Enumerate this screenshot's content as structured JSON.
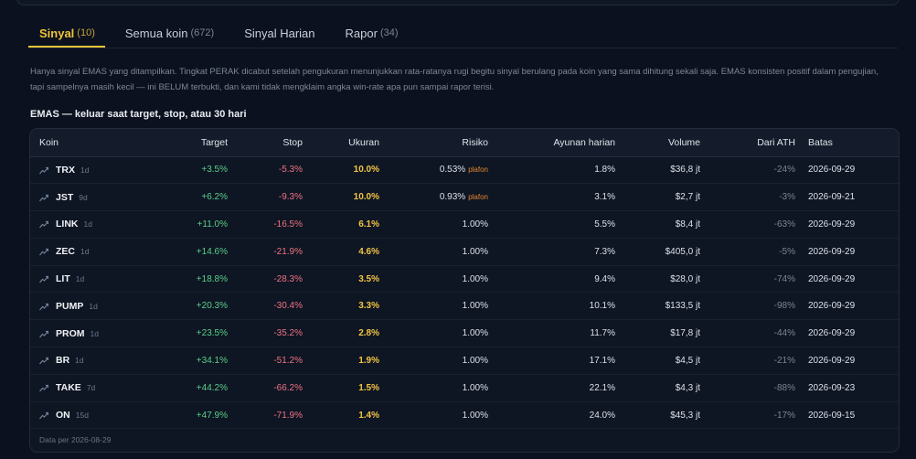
{
  "tabs": [
    {
      "label": "Sinyal",
      "count": "(10)",
      "active": true
    },
    {
      "label": "Semua koin",
      "count": "(672)",
      "active": false
    },
    {
      "label": "Sinyal Harian",
      "count": "",
      "active": false
    },
    {
      "label": "Rapor",
      "count": "(34)",
      "active": false
    }
  ],
  "note": "Hanya sinyal EMAS yang ditampilkan. Tingkat PERAK dicabut setelah pengukuran menunjukkan rata-ratanya rugi begitu sinyal berulang pada koin yang sama dihitung sekali saja. EMAS konsisten positif dalam pengujian, tapi sampelnya masih kecil — ini BELUM terbukti, dan kami tidak mengklaim angka win-rate apa pun sampai rapor terisi.",
  "section_title": "EMAS — keluar saat target, stop, atau 30 hari",
  "table": {
    "headers": {
      "coin": "Koin",
      "target": "Target",
      "stop": "Stop",
      "size": "Ukuran",
      "risk": "Risiko",
      "daily_swing": "Ayunan harian",
      "volume": "Volume",
      "from_ath": "Dari ATH",
      "deadline": "Batas"
    },
    "icon": "chart-line-icon",
    "rows": [
      {
        "coin": "TRX",
        "tf": "1d",
        "target": "+3.5%",
        "stop": "-5.3%",
        "size": "10.0%",
        "risk": "0.53%",
        "risk_tag": "plafon",
        "swing": "1.8%",
        "volume": "$36,8 jt",
        "ath": "-24%",
        "deadline": "2026-09-29"
      },
      {
        "coin": "JST",
        "tf": "9d",
        "target": "+6.2%",
        "stop": "-9.3%",
        "size": "10.0%",
        "risk": "0.93%",
        "risk_tag": "plafon",
        "swing": "3.1%",
        "volume": "$2,7 jt",
        "ath": "-3%",
        "deadline": "2026-09-21"
      },
      {
        "coin": "LINK",
        "tf": "1d",
        "target": "+11.0%",
        "stop": "-16.5%",
        "size": "6.1%",
        "risk": "1.00%",
        "risk_tag": "",
        "swing": "5.5%",
        "volume": "$8,4 jt",
        "ath": "-63%",
        "deadline": "2026-09-29"
      },
      {
        "coin": "ZEC",
        "tf": "1d",
        "target": "+14.6%",
        "stop": "-21.9%",
        "size": "4.6%",
        "risk": "1.00%",
        "risk_tag": "",
        "swing": "7.3%",
        "volume": "$405,0 jt",
        "ath": "-5%",
        "deadline": "2026-09-29"
      },
      {
        "coin": "LIT",
        "tf": "1d",
        "target": "+18.8%",
        "stop": "-28.3%",
        "size": "3.5%",
        "risk": "1.00%",
        "risk_tag": "",
        "swing": "9.4%",
        "volume": "$28,0 jt",
        "ath": "-74%",
        "deadline": "2026-09-29"
      },
      {
        "coin": "PUMP",
        "tf": "1d",
        "target": "+20.3%",
        "stop": "-30.4%",
        "size": "3.3%",
        "risk": "1.00%",
        "risk_tag": "",
        "swing": "10.1%",
        "volume": "$133,5 jt",
        "ath": "-98%",
        "deadline": "2026-09-29"
      },
      {
        "coin": "PROM",
        "tf": "1d",
        "target": "+23.5%",
        "stop": "-35.2%",
        "size": "2.8%",
        "risk": "1.00%",
        "risk_tag": "",
        "swing": "11.7%",
        "volume": "$17,8 jt",
        "ath": "-44%",
        "deadline": "2026-09-29"
      },
      {
        "coin": "BR",
        "tf": "1d",
        "target": "+34.1%",
        "stop": "-51.2%",
        "size": "1.9%",
        "risk": "1.00%",
        "risk_tag": "",
        "swing": "17.1%",
        "volume": "$4,5 jt",
        "ath": "-21%",
        "deadline": "2026-09-29"
      },
      {
        "coin": "TAKE",
        "tf": "7d",
        "target": "+44.2%",
        "stop": "-66.2%",
        "size": "1.5%",
        "risk": "1.00%",
        "risk_tag": "",
        "swing": "22.1%",
        "volume": "$4,3 jt",
        "ath": "-88%",
        "deadline": "2026-09-23"
      },
      {
        "coin": "ON",
        "tf": "15d",
        "target": "+47.9%",
        "stop": "-71.9%",
        "size": "1.4%",
        "risk": "1.00%",
        "risk_tag": "",
        "swing": "24.0%",
        "volume": "$45,3 jt",
        "ath": "-17%",
        "deadline": "2026-09-15"
      }
    ],
    "footer": "Data per 2026-08-29"
  },
  "colors": {
    "accent": "#f0c43a",
    "positive": "#5ad088",
    "negative": "#ef7383",
    "size": "#f3c544",
    "cap_tag": "#e2872e"
  }
}
